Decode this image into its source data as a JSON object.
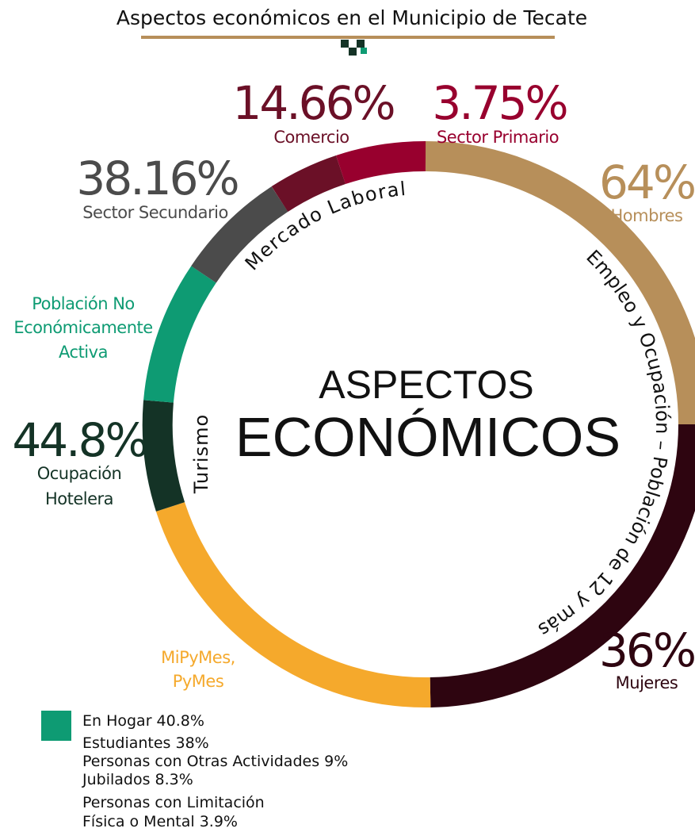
{
  "title": "Aspectos económicos en el Municipio de Tecate",
  "center": {
    "line1": "ASPECTOS",
    "line2": "ECONÓMICOS"
  },
  "ring_labels": {
    "mercado": "Mercado Laboral",
    "empleo": "Empleo y Ocupación – Población de 12 y más",
    "turismo": "Turismo"
  },
  "labels": {
    "comercio": {
      "value": "14.66%",
      "caption": "Comercio"
    },
    "primario": {
      "value": "3.75%",
      "caption": "Sector Primario"
    },
    "secundario": {
      "value": "38.16%",
      "caption": "Sector Secundario"
    },
    "hombres": {
      "value": "64%",
      "caption": "Hombres"
    },
    "no_activa": {
      "caption": [
        "Población No",
        "Económicamente",
        "Activa"
      ]
    },
    "hotelera": {
      "value": "44.8%",
      "caption": [
        "Ocupación",
        "Hotelera"
      ]
    },
    "mipymes": {
      "caption": [
        "MiPyMes,",
        "PyMes"
      ]
    },
    "mujeres": {
      "value": "36%",
      "caption": "Mujeres"
    }
  },
  "legend": [
    "En Hogar 40.8%",
    "Estudiantes 38%",
    "Personas con Otras Actividades 9%",
    "Jubilados 8.3%",
    "Personas con Limitación",
    "Física o Mental 3.9%"
  ]
}
